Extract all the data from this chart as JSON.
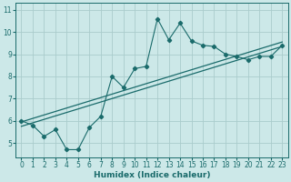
{
  "title": "",
  "xlabel": "Humidex (Indice chaleur)",
  "background_color": "#cce8e8",
  "grid_color": "#aacccc",
  "line_color": "#1a6b6b",
  "x_data": [
    0,
    1,
    2,
    3,
    4,
    5,
    6,
    7,
    8,
    9,
    10,
    11,
    12,
    13,
    14,
    15,
    16,
    17,
    18,
    19,
    20,
    21,
    22,
    23
  ],
  "y_main": [
    6.0,
    5.8,
    5.3,
    5.6,
    4.7,
    4.7,
    5.7,
    6.2,
    8.0,
    7.5,
    8.35,
    8.45,
    10.6,
    9.65,
    10.4,
    9.6,
    9.4,
    9.35,
    9.0,
    8.9,
    8.75,
    8.9,
    8.9,
    9.4
  ],
  "line1_y0": 5.95,
  "line1_y1": 9.55,
  "line2_y0": 5.75,
  "line2_y1": 9.35,
  "xlim": [
    -0.5,
    23.5
  ],
  "ylim": [
    4.35,
    11.3
  ],
  "yticks": [
    5,
    6,
    7,
    8,
    9,
    10,
    11
  ],
  "xticks": [
    0,
    1,
    2,
    3,
    4,
    5,
    6,
    7,
    8,
    9,
    10,
    11,
    12,
    13,
    14,
    15,
    16,
    17,
    18,
    19,
    20,
    21,
    22,
    23
  ],
  "tick_fontsize": 5.5,
  "xlabel_fontsize": 6.5
}
